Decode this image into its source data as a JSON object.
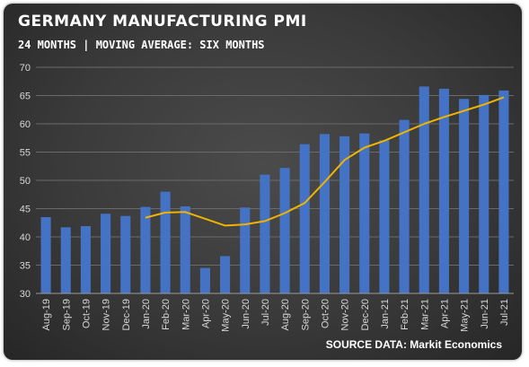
{
  "chart_data": {
    "type": "bar",
    "title": "GERMANY MANUFACTURING PMI",
    "subtitle": "24 MONTHS | MOVING AVERAGE: SIX MONTHS",
    "source": "SOURCE DATA: Markit Economics",
    "categories": [
      "Aug-19",
      "Sep-19",
      "Oct-19",
      "Nov-19",
      "Dec-19",
      "Jan-20",
      "Feb-20",
      "Mar-20",
      "Apr-20",
      "May-20",
      "Jun-20",
      "Jul-20",
      "Aug-20",
      "Sep-20",
      "Oct-20",
      "Nov-20",
      "Dec-20",
      "Jan-21",
      "Feb-21",
      "Mar-21",
      "Apr-21",
      "May-21",
      "Jun-21",
      "Jul-21"
    ],
    "ylim": [
      30,
      70
    ],
    "yticks": [
      30,
      35,
      40,
      45,
      50,
      55,
      60,
      65,
      70
    ],
    "grid": true,
    "series": [
      {
        "type": "bar",
        "color": "#4472c4",
        "values": [
          43.5,
          41.7,
          41.9,
          44.1,
          43.7,
          45.3,
          48.0,
          45.4,
          34.5,
          36.6,
          45.2,
          51.0,
          52.2,
          56.4,
          58.2,
          57.8,
          58.3,
          57.1,
          60.7,
          66.6,
          66.2,
          64.4,
          65.1,
          65.9
        ]
      },
      {
        "type": "line",
        "color": "#f0b400",
        "values": [
          null,
          null,
          null,
          null,
          null,
          43.4,
          44.3,
          44.4,
          43.2,
          42.0,
          42.2,
          42.8,
          44.2,
          46.0,
          49.7,
          53.6,
          55.8,
          57.0,
          58.5,
          60.0,
          61.2,
          62.3,
          63.4,
          64.7
        ]
      }
    ]
  }
}
